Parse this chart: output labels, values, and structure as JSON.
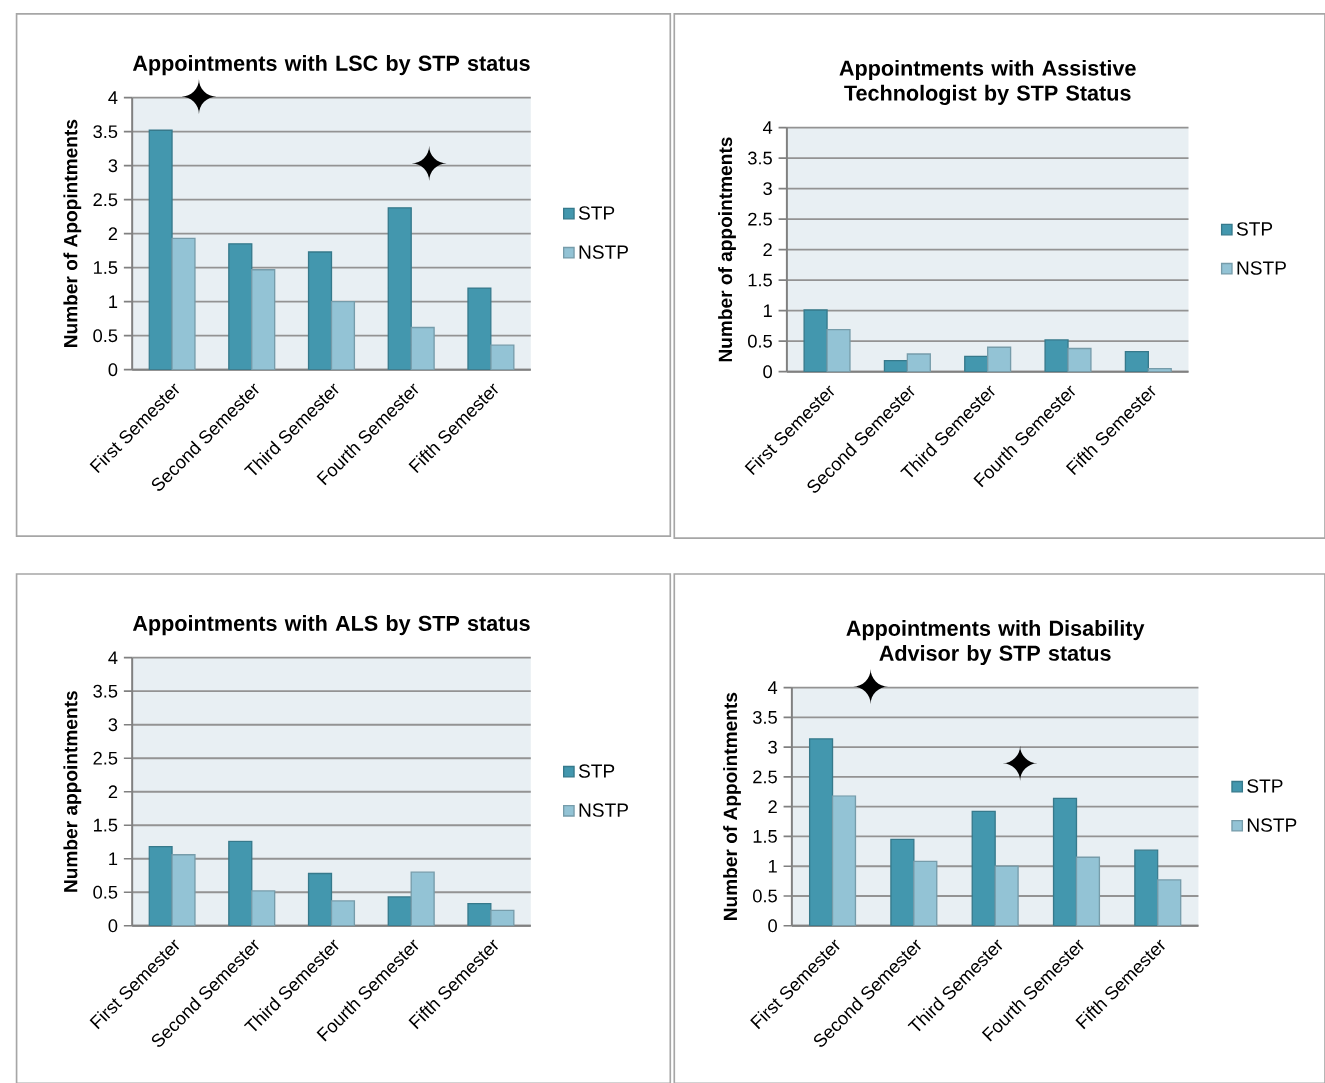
{
  "chart_data": [
    {
      "type": "bar",
      "title": "Appointments with LSC by STP status",
      "ylabel": "Number of Apopintments",
      "categories": [
        "First Semester",
        "Second Semester",
        "Third Semester",
        "Fourth Semester",
        "Fifth Semester"
      ],
      "series": [
        {
          "name": "STP",
          "color": "#4397ae",
          "values": [
            3.52,
            1.85,
            1.73,
            2.38,
            1.2
          ]
        },
        {
          "name": "NSTP",
          "color": "#93c3d5",
          "values": [
            1.93,
            1.47,
            1.0,
            0.62,
            0.36
          ]
        }
      ],
      "ylim": [
        0,
        4
      ],
      "yticks": [
        0,
        0.5,
        1,
        1.5,
        2,
        2.5,
        3,
        3.5,
        4
      ],
      "grid": "y",
      "legend": "right",
      "annotations": [
        "✦",
        "✦"
      ]
    },
    {
      "type": "bar",
      "title": "Appointments with Assistive Technologist by STP Status",
      "ylabel": "Number of appointments",
      "categories": [
        "First Semester",
        "Second Semester",
        "Third Semester",
        "Fourth Semester",
        "Fifth Semester"
      ],
      "series": [
        {
          "name": "STP",
          "color": "#4397ae",
          "values": [
            1.01,
            0.18,
            0.25,
            0.52,
            0.33
          ]
        },
        {
          "name": "NSTP",
          "color": "#93c3d5",
          "values": [
            0.69,
            0.29,
            0.4,
            0.38,
            0.05
          ]
        }
      ],
      "ylim": [
        0,
        4
      ],
      "yticks": [
        0,
        0.5,
        1,
        1.5,
        2,
        2.5,
        3,
        3.5,
        4
      ],
      "grid": "y",
      "legend": "right"
    },
    {
      "type": "bar",
      "title": "Appointments with ALS by STP status",
      "ylabel": "Number appointments",
      "categories": [
        "First Semester",
        "Second Semester",
        "Third Semester",
        "Fourth Semester",
        "Fifth Semester"
      ],
      "series": [
        {
          "name": "STP",
          "color": "#4397ae",
          "values": [
            1.18,
            1.26,
            0.78,
            0.43,
            0.33
          ]
        },
        {
          "name": "NSTP",
          "color": "#93c3d5",
          "values": [
            1.06,
            0.52,
            0.37,
            0.8,
            0.23
          ]
        }
      ],
      "ylim": [
        0,
        4
      ],
      "yticks": [
        0,
        0.5,
        1,
        1.5,
        2,
        2.5,
        3,
        3.5,
        4
      ],
      "grid": "y",
      "legend": "right"
    },
    {
      "type": "bar",
      "title": "Appointments with Disability Advisor by STP status",
      "ylabel": "Number of Appointments",
      "categories": [
        "First Semester",
        "Second Semester",
        "Third Semester",
        "Fourth Semester",
        "Fifth Semester"
      ],
      "series": [
        {
          "name": "STP",
          "color": "#4397ae",
          "values": [
            3.14,
            1.45,
            1.92,
            2.14,
            1.27
          ]
        },
        {
          "name": "NSTP",
          "color": "#93c3d5",
          "values": [
            2.18,
            1.08,
            1.0,
            1.15,
            0.77
          ]
        }
      ],
      "ylim": [
        0,
        4
      ],
      "yticks": [
        0,
        0.5,
        1,
        1.5,
        2,
        2.5,
        3,
        3.5,
        4
      ],
      "grid": "y",
      "legend": "right",
      "annotations": [
        "✦",
        "✦"
      ]
    }
  ]
}
